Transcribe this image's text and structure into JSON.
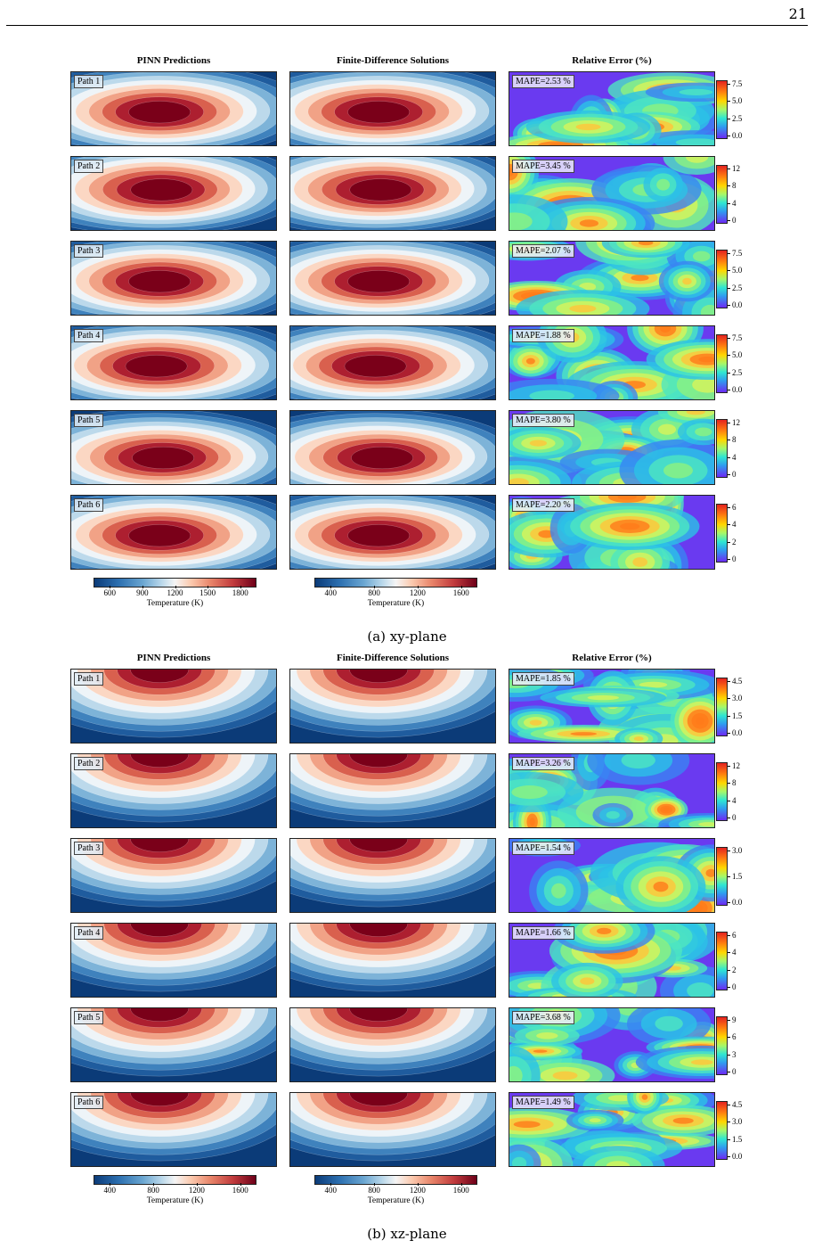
{
  "page_number": "21",
  "column_titles": {
    "pinn": "PINN Predictions",
    "fd": "Finite-Difference Solutions",
    "err": "Relative Error (%)"
  },
  "temp_label": "Temperature (K)",
  "sections": [
    {
      "plane": "xy",
      "caption": "(a) xy-plane",
      "pinn_ticks": [
        "600",
        "900",
        "1200",
        "1500",
        "1800"
      ],
      "fd_ticks": [
        "400",
        "800",
        "1200",
        "1600"
      ],
      "rows": [
        {
          "path": "Path 1",
          "mape": "MAPE=2.53 %",
          "ticks": [
            "7.5",
            "5.0",
            "2.5",
            "0.0"
          ]
        },
        {
          "path": "Path 2",
          "mape": "MAPE=3.45 %",
          "ticks": [
            "12",
            "8",
            "4",
            "0"
          ]
        },
        {
          "path": "Path 3",
          "mape": "MAPE=2.07 %",
          "ticks": [
            "7.5",
            "5.0",
            "2.5",
            "0.0"
          ]
        },
        {
          "path": "Path 4",
          "mape": "MAPE=1.88 %",
          "ticks": [
            "7.5",
            "5.0",
            "2.5",
            "0.0"
          ]
        },
        {
          "path": "Path 5",
          "mape": "MAPE=3.80 %",
          "ticks": [
            "12",
            "8",
            "4",
            "0"
          ]
        },
        {
          "path": "Path 6",
          "mape": "MAPE=2.20 %",
          "ticks": [
            "6",
            "4",
            "2",
            "0"
          ]
        }
      ]
    },
    {
      "plane": "xz",
      "caption": "(b) xz-plane",
      "pinn_ticks": [
        "400",
        "800",
        "1200",
        "1600"
      ],
      "fd_ticks": [
        "400",
        "800",
        "1200",
        "1600"
      ],
      "rows": [
        {
          "path": "Path 1",
          "mape": "MAPE=1.85 %",
          "ticks": [
            "4.5",
            "3.0",
            "1.5",
            "0.0"
          ]
        },
        {
          "path": "Path 2",
          "mape": "MAPE=3.26 %",
          "ticks": [
            "12",
            "8",
            "4",
            "0"
          ]
        },
        {
          "path": "Path 3",
          "mape": "MAPE=1.54 %",
          "ticks": [
            "3.0",
            "1.5",
            "0.0"
          ]
        },
        {
          "path": "Path 4",
          "mape": "MAPE=1.66 %",
          "ticks": [
            "6",
            "4",
            "2",
            "0"
          ]
        },
        {
          "path": "Path 5",
          "mape": "MAPE=3.68 %",
          "ticks": [
            "9",
            "6",
            "3",
            "0"
          ]
        },
        {
          "path": "Path 6",
          "mape": "MAPE=1.49 %",
          "ticks": [
            "4.5",
            "3.0",
            "1.5",
            "0.0"
          ]
        }
      ]
    }
  ]
}
